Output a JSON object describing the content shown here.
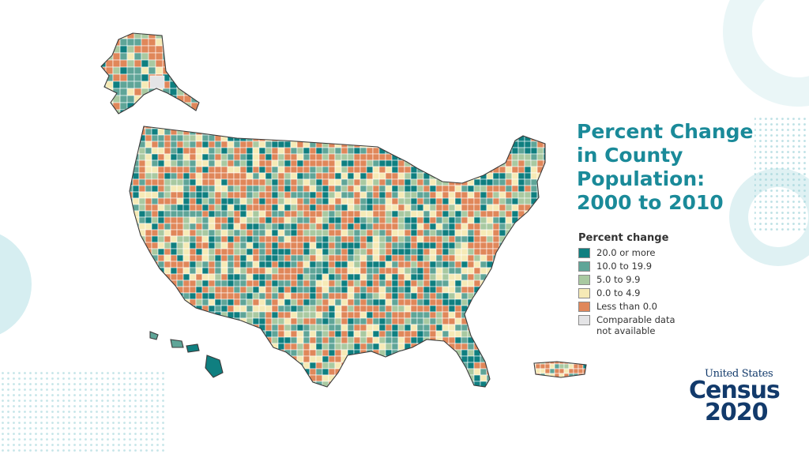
{
  "title": {
    "lines": [
      "Percent Change",
      "in County",
      "Population:",
      "2000 to 2010"
    ]
  },
  "legend": {
    "title": "Percent change",
    "items": [
      {
        "label": "20.0 or more",
        "color": "#0f7f80"
      },
      {
        "label": "10.0 to 19.9",
        "color": "#5fa598"
      },
      {
        "label": "5.0 to 9.9",
        "color": "#a9c9a1"
      },
      {
        "label": "0.0 to 4.9",
        "color": "#f6eab6"
      },
      {
        "label": "Less than 0.0",
        "color": "#e0875a"
      },
      {
        "label": "Comparable data\nnot available",
        "color": "#e4e4e6"
      }
    ]
  },
  "logo": {
    "line1": "United States",
    "line2": "Census",
    "line3": "2020"
  },
  "colors": {
    "title": "#1a8a99",
    "logo": "#123a6b",
    "border": "#3a3a3a"
  }
}
